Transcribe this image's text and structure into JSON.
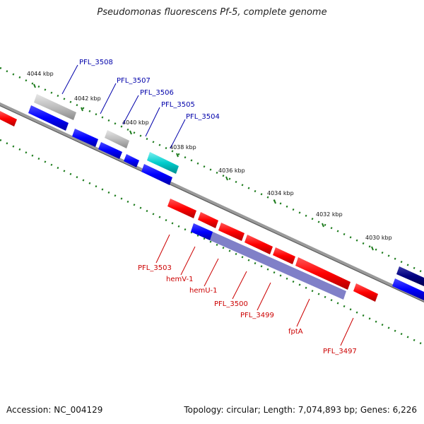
{
  "title": "Pseudomonas fluorescens Pf-5, complete genome",
  "footer": {
    "accession": "Accession: NC_004129",
    "topology": "Topology: circular; Length: 7,074,893 bp; Genes: 6,226"
  },
  "colors": {
    "forward_cds": "#ff0000",
    "reverse_cds": "#0000ff",
    "grey_feature": "#b4b4b4",
    "cyan_feature": "#00c8c8",
    "navy_feature": "#000080",
    "overlay": "#3c3caa",
    "backbone": "#777777",
    "forward_label": "#cc0000",
    "reverse_label": "#0000aa",
    "tick": "#1a7a1a"
  },
  "ticks": [
    {
      "label": "4044 kbp"
    },
    {
      "label": "4042 kbp"
    },
    {
      "label": "4040 kbp"
    },
    {
      "label": "4038 kbp"
    },
    {
      "label": "4036 kbp"
    },
    {
      "label": "4034 kbp"
    },
    {
      "label": "4032 kbp"
    },
    {
      "label": "4030 kbp"
    }
  ],
  "upper_labels": [
    "PFL_3508",
    "PFL_3507",
    "PFL_3506",
    "PFL_3505",
    "PFL_3504"
  ],
  "lower_labels": [
    "PFL_3503",
    "hemV-1",
    "hemU-1",
    "PFL_3500",
    "PFL_3499",
    "fptA",
    "PFL_3497"
  ]
}
